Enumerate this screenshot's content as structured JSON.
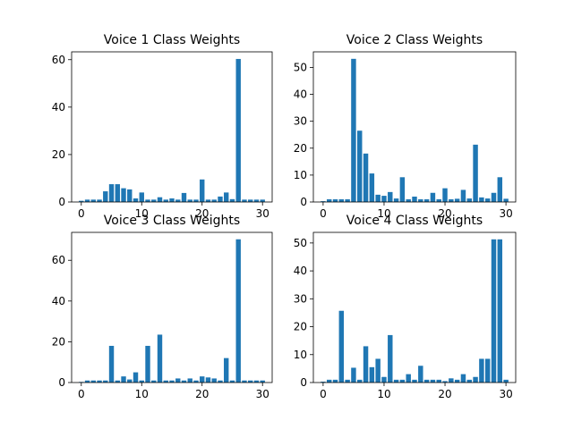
{
  "chart_data": [
    {
      "type": "bar",
      "title": "Voice 1 Class Weights",
      "color": "#1f77b4",
      "xlim": [
        -1.6,
        31.6
      ],
      "ylim": [
        0,
        63.3
      ],
      "xticks": [
        0,
        10,
        20,
        30
      ],
      "yticks": [
        0,
        20,
        40,
        60
      ],
      "x": [
        0,
        1,
        2,
        3,
        4,
        5,
        6,
        7,
        8,
        9,
        10,
        11,
        12,
        13,
        14,
        15,
        16,
        17,
        18,
        19,
        20,
        21,
        22,
        23,
        24,
        25,
        26,
        27,
        28,
        29,
        30
      ],
      "values": [
        0.5,
        1,
        1,
        1,
        4.5,
        7.5,
        7.5,
        5.8,
        5.3,
        1.5,
        4,
        1,
        1,
        2,
        1,
        1.5,
        1,
        3.8,
        1,
        1,
        9.5,
        1,
        1,
        2.3,
        4,
        1.2,
        60.3,
        1,
        1,
        1,
        1
      ]
    },
    {
      "type": "bar",
      "title": "Voice 2 Class Weights",
      "color": "#1f77b4",
      "xlim": [
        -1.6,
        31.6
      ],
      "ylim": [
        0,
        55.8
      ],
      "xticks": [
        0,
        10,
        20,
        30
      ],
      "yticks": [
        0,
        10,
        20,
        30,
        40,
        50
      ],
      "x": [
        0,
        1,
        2,
        3,
        4,
        5,
        6,
        7,
        8,
        9,
        10,
        11,
        12,
        13,
        14,
        15,
        16,
        17,
        18,
        19,
        20,
        21,
        22,
        23,
        24,
        25,
        26,
        27,
        28,
        29,
        30
      ],
      "values": [
        0.3,
        1,
        1,
        1,
        1,
        53.2,
        26.5,
        18,
        10.6,
        2.7,
        2.3,
        3.7,
        1.3,
        9.2,
        1,
        2,
        1,
        1,
        3.4,
        1,
        5.1,
        1,
        1.2,
        4.5,
        1.3,
        21.3,
        1.7,
        1.3,
        3.4,
        9.2,
        1.2
      ]
    },
    {
      "type": "bar",
      "title": "Voice 3 Class Weights",
      "color": "#1f77b4",
      "xlim": [
        -1.6,
        31.6
      ],
      "ylim": [
        0,
        73.7
      ],
      "xticks": [
        0,
        10,
        20,
        30
      ],
      "yticks": [
        0,
        20,
        40,
        60
      ],
      "x": [
        0,
        1,
        2,
        3,
        4,
        5,
        6,
        7,
        8,
        9,
        10,
        11,
        12,
        13,
        14,
        15,
        16,
        17,
        18,
        19,
        20,
        21,
        22,
        23,
        24,
        25,
        26,
        27,
        28,
        29,
        30
      ],
      "values": [
        0.3,
        1,
        1,
        1,
        1,
        18,
        1,
        3,
        1.5,
        5,
        1,
        18,
        1,
        23.5,
        1,
        1,
        2,
        1,
        2,
        1,
        3,
        2.5,
        2,
        1,
        12,
        1,
        70.3,
        1,
        1,
        1,
        1
      ]
    },
    {
      "type": "bar",
      "title": "Voice 4 Class Weights",
      "color": "#1f77b4",
      "xlim": [
        -1.6,
        31.6
      ],
      "ylim": [
        0,
        53.8
      ],
      "xticks": [
        0,
        10,
        20,
        30
      ],
      "yticks": [
        0,
        10,
        20,
        30,
        40,
        50
      ],
      "x": [
        0,
        1,
        2,
        3,
        4,
        5,
        6,
        7,
        8,
        9,
        10,
        11,
        12,
        13,
        14,
        15,
        16,
        17,
        18,
        19,
        20,
        21,
        22,
        23,
        24,
        25,
        26,
        27,
        28,
        29,
        30
      ],
      "values": [
        0.3,
        1,
        1,
        25.7,
        1,
        5.3,
        1,
        13,
        5.5,
        8.5,
        2,
        17,
        1,
        1,
        3,
        1,
        6,
        1,
        1,
        1,
        0.5,
        1.5,
        1,
        3,
        1,
        2,
        8.5,
        8.5,
        51.3,
        51.3,
        1
      ]
    }
  ]
}
